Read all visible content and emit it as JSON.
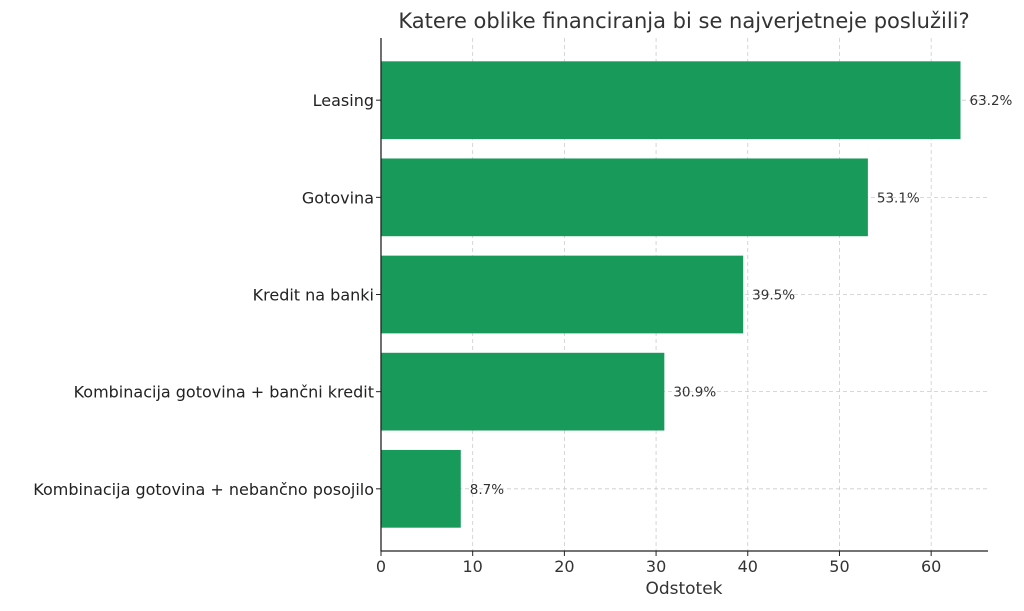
{
  "chart_data": {
    "type": "bar",
    "orientation": "horizontal",
    "title": "Katere oblike financiranja bi se najverjetneje poslužili?",
    "xlabel": "Odstotek",
    "ylabel": "",
    "categories": [
      "Leasing",
      "Gotovina",
      "Kredit na banki",
      "Kombinacija gotovina + bančni kredit",
      "Kombinacija gotovina + nebančno posojilo"
    ],
    "values": [
      63.2,
      53.1,
      39.5,
      30.9,
      8.7
    ],
    "data_labels": [
      "63.2%",
      "53.1%",
      "39.5%",
      "30.9%",
      "8.7%"
    ],
    "xlim": [
      0,
      66.2
    ],
    "xticks": [
      "0",
      "10",
      "20",
      "30",
      "40",
      "50",
      "60"
    ],
    "grid": true,
    "bar_color": "#179a5a"
  }
}
